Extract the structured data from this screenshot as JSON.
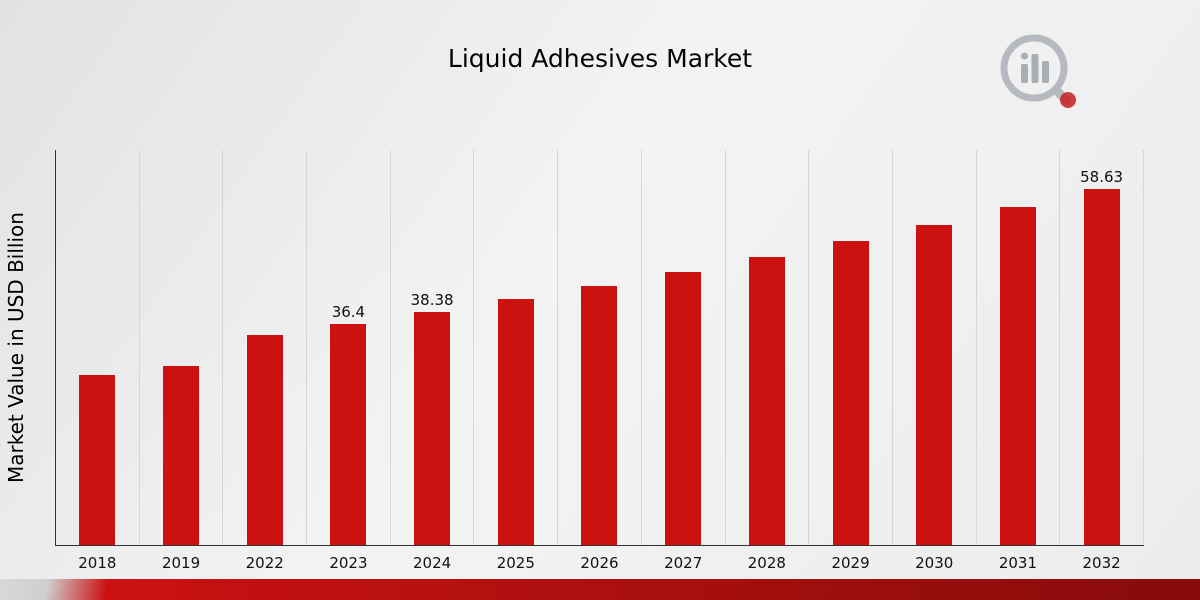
{
  "title": "Liquid Adhesives Market",
  "y_axis_label": "Market Value in USD Billion",
  "logo": {
    "name": "market-research-chart-magnifier-logo"
  },
  "chart_data": {
    "type": "bar",
    "title": "Liquid Adhesives Market",
    "xlabel": "",
    "ylabel": "Market Value in USD Billion",
    "categories": [
      "2018",
      "2019",
      "2022",
      "2023",
      "2024",
      "2025",
      "2026",
      "2027",
      "2028",
      "2029",
      "2030",
      "2031",
      "2032"
    ],
    "values": [
      27.9,
      29.5,
      34.5,
      36.4,
      38.38,
      40.5,
      42.7,
      45.0,
      47.4,
      50.0,
      52.7,
      55.6,
      58.63
    ],
    "value_labels": [
      "",
      "",
      "",
      "36.4",
      "38.38",
      "",
      "",
      "",
      "",
      "",
      "",
      "",
      "58.63"
    ],
    "bar_color": "#cc1111",
    "grid": "vertical",
    "gridline_color": "#d6d6d6",
    "ylim": [
      0,
      65
    ],
    "legend": "none"
  },
  "footer": {
    "ribbon_colors": [
      "#cfcfcf",
      "#cc1111",
      "#870a0a"
    ]
  }
}
